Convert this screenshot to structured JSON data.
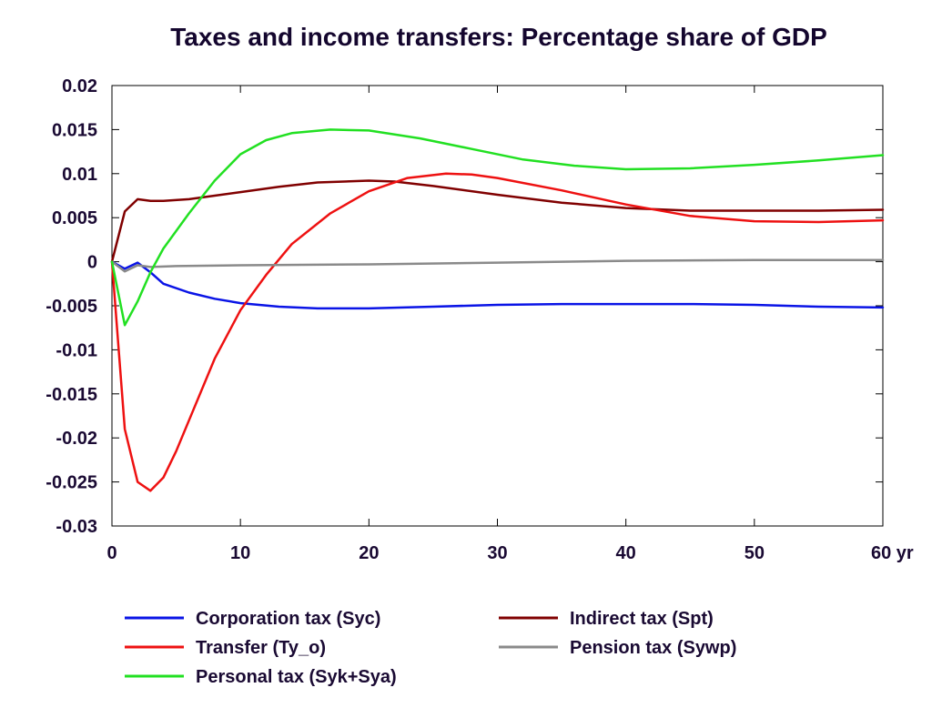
{
  "chart_data": {
    "type": "line",
    "title": "Taxes and income transfers: Percentage share of GDP",
    "xlabel": "",
    "ylabel": "",
    "x_unit": "yr",
    "xlim": [
      0,
      60
    ],
    "ylim": [
      -0.03,
      0.02
    ],
    "x_ticks": [
      0,
      10,
      20,
      30,
      40,
      50,
      60
    ],
    "x_tick_labels": [
      "0",
      "10",
      "20",
      "30",
      "40",
      "50",
      "60 yr"
    ],
    "y_ticks": [
      0.02,
      0.015,
      0.01,
      0.005,
      0,
      -0.005,
      -0.01,
      -0.015,
      -0.02,
      -0.025,
      -0.03
    ],
    "y_tick_labels": [
      "0.02",
      "0.015",
      "0.01",
      "0.005",
      "0",
      "-0.005",
      "-0.01",
      "-0.015",
      "-0.02",
      "-0.025",
      "-0.03"
    ],
    "grid": false,
    "legend_position": "bottom",
    "series": [
      {
        "name": "Corporation tax (Syc)",
        "color": "#0a14e6",
        "points": [
          [
            0,
            0
          ],
          [
            1,
            -0.0008
          ],
          [
            2,
            -0.0001
          ],
          [
            3,
            -0.0012
          ],
          [
            4,
            -0.0025
          ],
          [
            6,
            -0.0035
          ],
          [
            8,
            -0.0042
          ],
          [
            10,
            -0.0047
          ],
          [
            13,
            -0.0051
          ],
          [
            16,
            -0.0053
          ],
          [
            20,
            -0.0053
          ],
          [
            25,
            -0.0051
          ],
          [
            30,
            -0.0049
          ],
          [
            35,
            -0.0048
          ],
          [
            40,
            -0.0048
          ],
          [
            45,
            -0.0048
          ],
          [
            50,
            -0.0049
          ],
          [
            55,
            -0.0051
          ],
          [
            60,
            -0.0052
          ]
        ]
      },
      {
        "name": "Indirect tax (Spt)",
        "color": "#800000",
        "points": [
          [
            0,
            0
          ],
          [
            1,
            0.0057
          ],
          [
            2,
            0.0071
          ],
          [
            3,
            0.0069
          ],
          [
            4,
            0.0069
          ],
          [
            6,
            0.0071
          ],
          [
            8,
            0.0075
          ],
          [
            10,
            0.0079
          ],
          [
            13,
            0.0085
          ],
          [
            16,
            0.009
          ],
          [
            20,
            0.0092
          ],
          [
            22,
            0.0091
          ],
          [
            25,
            0.0086
          ],
          [
            30,
            0.0076
          ],
          [
            35,
            0.0067
          ],
          [
            40,
            0.0061
          ],
          [
            45,
            0.0058
          ],
          [
            50,
            0.0058
          ],
          [
            55,
            0.0058
          ],
          [
            60,
            0.0059
          ]
        ]
      },
      {
        "name": "Transfer (Ty_o)",
        "color": "#ee1111",
        "points": [
          [
            0,
            0
          ],
          [
            1,
            -0.019
          ],
          [
            2,
            -0.025
          ],
          [
            3,
            -0.026
          ],
          [
            4,
            -0.0245
          ],
          [
            5,
            -0.0215
          ],
          [
            6,
            -0.018
          ],
          [
            8,
            -0.011
          ],
          [
            10,
            -0.0055
          ],
          [
            12,
            -0.0015
          ],
          [
            14,
            0.002
          ],
          [
            17,
            0.0055
          ],
          [
            20,
            0.008
          ],
          [
            23,
            0.0095
          ],
          [
            26,
            0.01
          ],
          [
            28,
            0.0099
          ],
          [
            30,
            0.0095
          ],
          [
            35,
            0.0081
          ],
          [
            40,
            0.0065
          ],
          [
            45,
            0.0052
          ],
          [
            50,
            0.0046
          ],
          [
            55,
            0.0045
          ],
          [
            60,
            0.0047
          ]
        ]
      },
      {
        "name": "Pension tax (Sywp)",
        "color": "#8a8a8a",
        "points": [
          [
            0,
            0
          ],
          [
            1,
            -0.0011
          ],
          [
            2,
            -0.0004
          ],
          [
            3,
            -0.0006
          ],
          [
            5,
            -0.0005
          ],
          [
            10,
            -0.0004
          ],
          [
            20,
            -0.0003
          ],
          [
            30,
            -0.0001
          ],
          [
            40,
            0.0001
          ],
          [
            50,
            0.0002
          ],
          [
            60,
            0.0002
          ]
        ]
      },
      {
        "name": "Personal tax (Syk+Sya)",
        "color": "#22e022",
        "points": [
          [
            0,
            0
          ],
          [
            1,
            -0.0072
          ],
          [
            2,
            -0.0045
          ],
          [
            3,
            -0.0012
          ],
          [
            4,
            0.0015
          ],
          [
            6,
            0.0055
          ],
          [
            8,
            0.0092
          ],
          [
            10,
            0.0122
          ],
          [
            12,
            0.0138
          ],
          [
            14,
            0.0146
          ],
          [
            17,
            0.015
          ],
          [
            20,
            0.0149
          ],
          [
            24,
            0.014
          ],
          [
            28,
            0.0128
          ],
          [
            32,
            0.0116
          ],
          [
            36,
            0.0109
          ],
          [
            40,
            0.0105
          ],
          [
            45,
            0.0106
          ],
          [
            50,
            0.011
          ],
          [
            55,
            0.0115
          ],
          [
            60,
            0.0121
          ]
        ]
      }
    ],
    "legend": [
      {
        "label": "Corporation tax (Syc)",
        "color": "#0a14e6",
        "col": 0,
        "row": 0
      },
      {
        "label": "Indirect tax (Spt)",
        "color": "#800000",
        "col": 1,
        "row": 0
      },
      {
        "label": "Transfer (Ty_o)",
        "color": "#ee1111",
        "col": 0,
        "row": 1
      },
      {
        "label": "Pension tax (Sywp)",
        "color": "#8a8a8a",
        "col": 1,
        "row": 1
      },
      {
        "label": "Personal tax (Syk+Sya)",
        "color": "#22e022",
        "col": 0,
        "row": 2
      }
    ]
  }
}
